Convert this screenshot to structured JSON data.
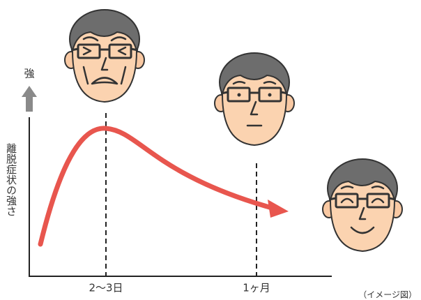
{
  "axis": {
    "y_top": "強",
    "y_label": "離脱症状の強さ"
  },
  "x_labels": [
    "2〜3日",
    "1ヶ月"
  ],
  "note": "（イメージ図）"
}
